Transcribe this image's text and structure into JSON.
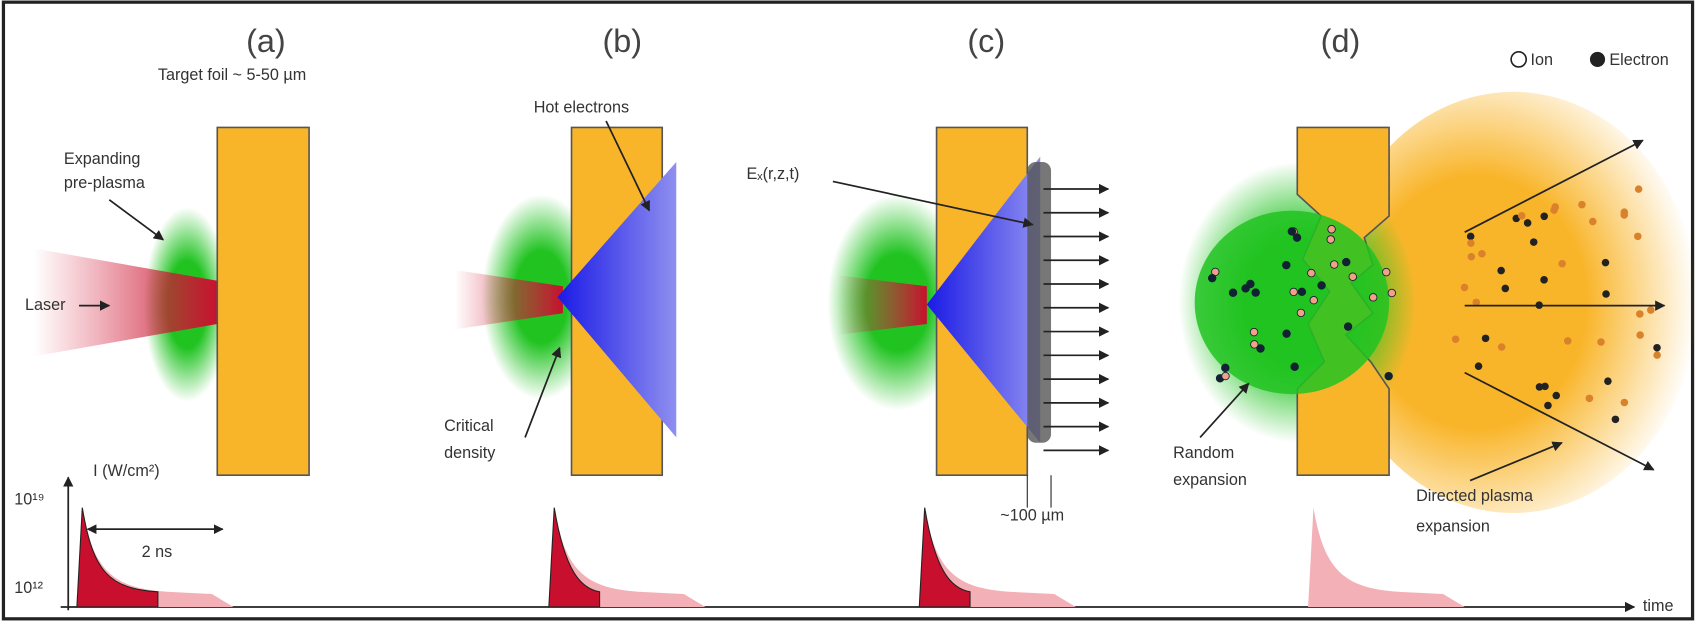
{
  "panels": [
    {
      "label": "(a)"
    },
    {
      "label": "(b)"
    },
    {
      "label": "(c)"
    },
    {
      "label": "(d)"
    }
  ],
  "legend": {
    "ion": "Ion",
    "electron": "Electron"
  },
  "annotations": {
    "target_foil": "Target foil ~ 5-50 µm",
    "expanding": [
      "Expanding",
      "pre-plasma"
    ],
    "laser": "Laser",
    "hot_electrons": "Hot electrons",
    "critical_density": [
      "Critical",
      "density"
    ],
    "field": "Eₓ(r,z,t)",
    "sheath_width": "~100 µm",
    "random_expansion": [
      "Random",
      "expansion"
    ],
    "directed_expansion": [
      "Directed plasma",
      "expansion"
    ]
  },
  "intensity_axis": {
    "label": "I (W/cm²)",
    "high": "10¹⁹",
    "low": "10¹²",
    "duration": "2 ns",
    "time": "time"
  }
}
